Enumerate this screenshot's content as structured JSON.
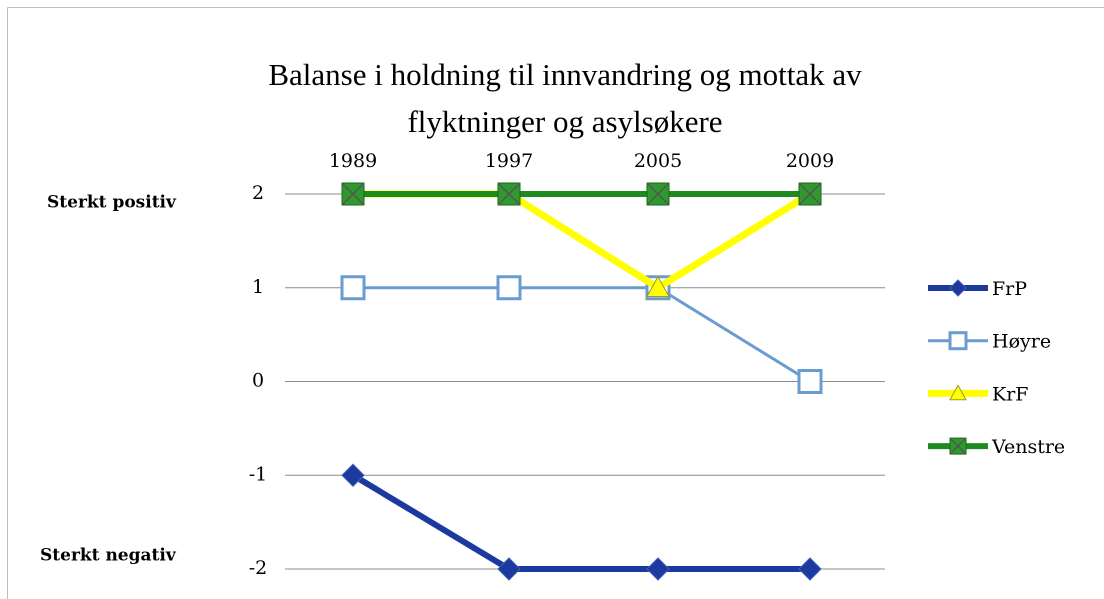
{
  "chart_data": {
    "type": "line",
    "title": [
      "Balanse i holdning til innvandring og mottak av",
      "flyktninger og asylsøkere"
    ],
    "annotations": [
      "Sterkt positiv",
      "Sterkt negativ"
    ],
    "categories": [
      "1989",
      "1997",
      "2005",
      "2009"
    ],
    "ylim": [
      -2,
      2
    ],
    "yticks": [
      2,
      1,
      0,
      -1,
      -2
    ],
    "grid": true,
    "legend": "right",
    "series": [
      {
        "name": "FrP",
        "color": "#1c3a9e",
        "marker": "diamond",
        "values": [
          -1,
          -2,
          -2,
          -2
        ]
      },
      {
        "name": "Høyre",
        "color": "#6a9bd1",
        "marker": "square",
        "values": [
          1,
          1,
          1,
          0
        ]
      },
      {
        "name": "KrF",
        "color": "#ffff00",
        "marker": "triangle",
        "values": [
          2,
          2,
          1,
          2
        ]
      },
      {
        "name": "Venstre",
        "color": "#1f8a1f",
        "marker": "xsquare",
        "values": [
          2,
          2,
          2,
          2
        ]
      }
    ]
  }
}
